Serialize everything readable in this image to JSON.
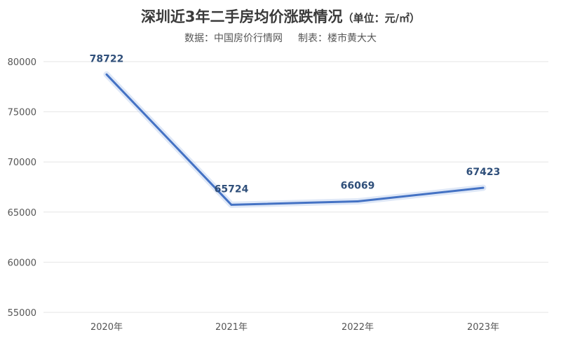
{
  "chart_data": {
    "type": "line",
    "title": "深圳近3年二手房均价涨跌情况",
    "title_unit": "（单位：元/㎡）",
    "source": "数据：中国房价行情网",
    "credit": "制表：楼市黄大大",
    "categories": [
      "2020年",
      "2021年",
      "2022年",
      "2023年"
    ],
    "series": [
      {
        "values": [
          78722,
          65724,
          66069,
          67423
        ]
      }
    ],
    "ylim": [
      55000,
      80000
    ],
    "yticks": [
      55000,
      60000,
      65000,
      70000,
      75000,
      80000
    ],
    "grid": true,
    "legend": "none",
    "line_color": "#4472c4",
    "grid_color": "#e6e6e6"
  }
}
